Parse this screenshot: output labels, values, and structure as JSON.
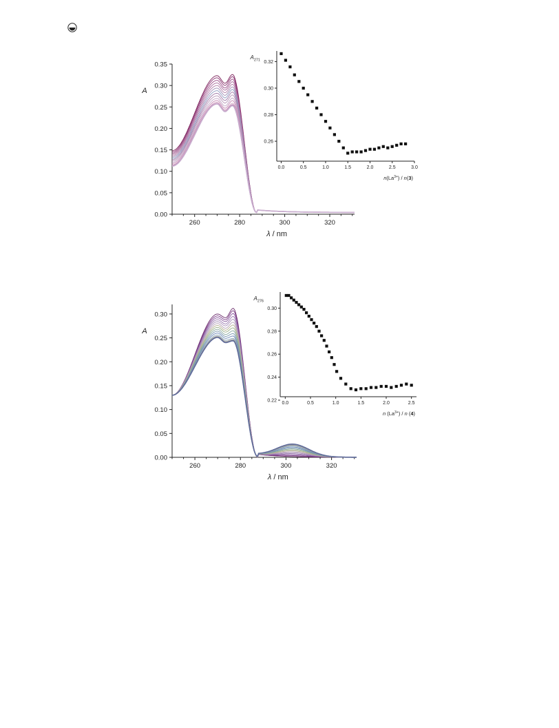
{
  "corner_icon": "circle-dot-icon",
  "chart_data": [
    {
      "type": "line",
      "xlabel_parts": [
        "λ",
        " / nm"
      ],
      "ylabel": "A",
      "xlim": [
        250,
        331
      ],
      "ylim": [
        0,
        0.35
      ],
      "xticks": [
        260,
        280,
        300,
        320
      ],
      "yticks": [
        0.0,
        0.05,
        0.1,
        0.15,
        0.2,
        0.25,
        0.3,
        0.35
      ],
      "ytick_labels": [
        "0.00",
        "0.05",
        "0.10",
        "0.15",
        "0.20",
        "0.25",
        "0.30",
        "0.35"
      ],
      "series_colors": [
        "#7a1f58",
        "#8a3070",
        "#9a4a86",
        "#a8689a",
        "#b27ea8",
        "#9f8cb4",
        "#8e9cc0",
        "#a07aa8",
        "#b696b8",
        "#c2a6c6",
        "#c68ab4",
        "#d0a0c0",
        "#bb7fb0",
        "#c9b0d0"
      ],
      "series": [
        {
          "base": 0.148,
          "peak1": 0.323,
          "dip": 0.305,
          "peak2": 0.326,
          "tail": 0.004
        },
        {
          "base": 0.145,
          "peak1": 0.318,
          "dip": 0.3,
          "peak2": 0.321,
          "tail": 0.004
        },
        {
          "base": 0.142,
          "peak1": 0.312,
          "dip": 0.294,
          "peak2": 0.315,
          "tail": 0.004
        },
        {
          "base": 0.139,
          "peak1": 0.306,
          "dip": 0.289,
          "peak2": 0.309,
          "tail": 0.004
        },
        {
          "base": 0.136,
          "peak1": 0.3,
          "dip": 0.283,
          "peak2": 0.303,
          "tail": 0.004
        },
        {
          "base": 0.133,
          "peak1": 0.294,
          "dip": 0.277,
          "peak2": 0.297,
          "tail": 0.004
        },
        {
          "base": 0.13,
          "peak1": 0.288,
          "dip": 0.271,
          "peak2": 0.291,
          "tail": 0.004
        },
        {
          "base": 0.127,
          "peak1": 0.282,
          "dip": 0.265,
          "peak2": 0.285,
          "tail": 0.004
        },
        {
          "base": 0.124,
          "peak1": 0.276,
          "dip": 0.259,
          "peak2": 0.278,
          "tail": 0.004
        },
        {
          "base": 0.121,
          "peak1": 0.27,
          "dip": 0.252,
          "peak2": 0.271,
          "tail": 0.004
        },
        {
          "base": 0.118,
          "peak1": 0.265,
          "dip": 0.247,
          "peak2": 0.265,
          "tail": 0.004
        },
        {
          "base": 0.115,
          "peak1": 0.261,
          "dip": 0.243,
          "peak2": 0.259,
          "tail": 0.004
        },
        {
          "base": 0.113,
          "peak1": 0.258,
          "dip": 0.24,
          "peak2": 0.255,
          "tail": 0.004
        },
        {
          "base": 0.112,
          "peak1": 0.257,
          "dip": 0.239,
          "peak2": 0.253,
          "tail": 0.004
        }
      ],
      "inset": {
        "type": "scatter",
        "ylabel_main": "A",
        "ylabel_sub": "271",
        "xlabel_parts": [
          "n",
          "(La",
          "3+",
          ") / ",
          "n",
          "(",
          "3",
          ")"
        ],
        "xlim": [
          -0.1,
          3.0
        ],
        "ylim": [
          0.245,
          0.328
        ],
        "xticks": [
          0.0,
          0.5,
          1.0,
          1.5,
          2.0,
          2.5,
          3.0
        ],
        "xtick_labels": [
          "0.0",
          "0.5",
          "1.0",
          "1.5",
          "2.0",
          "2.5",
          "3.0"
        ],
        "yticks": [
          0.26,
          0.28,
          0.3,
          0.32
        ],
        "ytick_labels": [
          "0.26",
          "0.28",
          "0.30",
          "0.32"
        ],
        "x": [
          0.0,
          0.1,
          0.2,
          0.3,
          0.4,
          0.5,
          0.6,
          0.7,
          0.8,
          0.9,
          1.0,
          1.1,
          1.2,
          1.3,
          1.4,
          1.5,
          1.6,
          1.7,
          1.8,
          1.9,
          2.0,
          2.1,
          2.2,
          2.3,
          2.4,
          2.5,
          2.6,
          2.7,
          2.8
        ],
        "y": [
          0.326,
          0.321,
          0.316,
          0.31,
          0.305,
          0.3,
          0.295,
          0.29,
          0.285,
          0.28,
          0.275,
          0.27,
          0.265,
          0.26,
          0.255,
          0.251,
          0.252,
          0.252,
          0.252,
          0.253,
          0.254,
          0.254,
          0.255,
          0.256,
          0.255,
          0.256,
          0.257,
          0.258,
          0.258
        ]
      }
    },
    {
      "type": "line",
      "xlabel_parts": [
        "λ",
        " / nm"
      ],
      "ylabel": "A",
      "xlim": [
        250,
        331
      ],
      "ylim": [
        0,
        0.32
      ],
      "xticks": [
        260,
        280,
        300,
        320
      ],
      "yticks": [
        0.0,
        0.05,
        0.1,
        0.15,
        0.2,
        0.25,
        0.3
      ],
      "ytick_labels": [
        "0.00",
        "0.05",
        "0.10",
        "0.15",
        "0.20",
        "0.25",
        "0.30"
      ],
      "series_colors": [
        "#6a2a6a",
        "#7a3a86",
        "#8a5aa0",
        "#9a78b0",
        "#a890b8",
        "#b6a0b8",
        "#b6b090",
        "#9ab08a",
        "#88a8a0",
        "#7a98b0",
        "#6a88b8",
        "#8aa6b6",
        "#a0a0a0",
        "#5e6a9a"
      ],
      "series": [
        {
          "base": 0.13,
          "peak1": 0.3,
          "dip": 0.292,
          "peak2": 0.312,
          "tail": 0.0,
          "shoulder": 0.0
        },
        {
          "base": 0.13,
          "peak1": 0.296,
          "dip": 0.288,
          "peak2": 0.307,
          "tail": 0.0,
          "shoulder": 0.002
        },
        {
          "base": 0.13,
          "peak1": 0.292,
          "dip": 0.284,
          "peak2": 0.301,
          "tail": 0.0,
          "shoulder": 0.004
        },
        {
          "base": 0.13,
          "peak1": 0.288,
          "dip": 0.279,
          "peak2": 0.295,
          "tail": 0.0,
          "shoulder": 0.006
        },
        {
          "base": 0.13,
          "peak1": 0.284,
          "dip": 0.275,
          "peak2": 0.289,
          "tail": 0.0,
          "shoulder": 0.008
        },
        {
          "base": 0.13,
          "peak1": 0.28,
          "dip": 0.27,
          "peak2": 0.283,
          "tail": 0.0,
          "shoulder": 0.01
        },
        {
          "base": 0.13,
          "peak1": 0.276,
          "dip": 0.266,
          "peak2": 0.277,
          "tail": 0.0,
          "shoulder": 0.012
        },
        {
          "base": 0.13,
          "peak1": 0.272,
          "dip": 0.262,
          "peak2": 0.271,
          "tail": 0.0,
          "shoulder": 0.014
        },
        {
          "base": 0.13,
          "peak1": 0.268,
          "dip": 0.257,
          "peak2": 0.265,
          "tail": 0.0,
          "shoulder": 0.016
        },
        {
          "base": 0.13,
          "peak1": 0.264,
          "dip": 0.253,
          "peak2": 0.259,
          "tail": 0.0,
          "shoulder": 0.018
        },
        {
          "base": 0.13,
          "peak1": 0.26,
          "dip": 0.249,
          "peak2": 0.254,
          "tail": 0.0,
          "shoulder": 0.02
        },
        {
          "base": 0.13,
          "peak1": 0.256,
          "dip": 0.245,
          "peak2": 0.249,
          "tail": 0.0,
          "shoulder": 0.022
        },
        {
          "base": 0.13,
          "peak1": 0.253,
          "dip": 0.242,
          "peak2": 0.246,
          "tail": 0.0,
          "shoulder": 0.024
        },
        {
          "base": 0.13,
          "peak1": 0.251,
          "dip": 0.24,
          "peak2": 0.244,
          "tail": 0.0,
          "shoulder": 0.026
        }
      ],
      "inset": {
        "type": "scatter",
        "ylabel_main": "A",
        "ylabel_sub": "276",
        "xlabel_parts": [
          "n",
          " (La",
          "3+",
          ") / ",
          "n",
          " (",
          "4",
          ")"
        ],
        "xlim": [
          -0.1,
          2.6
        ],
        "ylim": [
          0.223,
          0.314
        ],
        "xticks": [
          0.0,
          0.5,
          1.0,
          1.5,
          2.0,
          2.5
        ],
        "xtick_labels": [
          "0.0",
          "0.5",
          "1.0",
          "1.5",
          "2.0",
          "2.5"
        ],
        "yticks": [
          0.22,
          0.24,
          0.26,
          0.28,
          0.3
        ],
        "ytick_labels": [
          "0.22",
          "0.24",
          "0.26",
          "0.28",
          "0.30"
        ],
        "x": [
          0.02,
          0.07,
          0.12,
          0.17,
          0.22,
          0.27,
          0.32,
          0.37,
          0.42,
          0.47,
          0.52,
          0.57,
          0.62,
          0.67,
          0.72,
          0.77,
          0.82,
          0.87,
          0.92,
          0.97,
          1.02,
          1.1,
          1.2,
          1.3,
          1.4,
          1.5,
          1.6,
          1.7,
          1.8,
          1.9,
          2.0,
          2.1,
          2.2,
          2.3,
          2.4,
          2.5
        ],
        "y": [
          0.311,
          0.311,
          0.309,
          0.307,
          0.305,
          0.303,
          0.301,
          0.299,
          0.296,
          0.293,
          0.29,
          0.287,
          0.284,
          0.28,
          0.276,
          0.272,
          0.267,
          0.262,
          0.257,
          0.251,
          0.245,
          0.239,
          0.234,
          0.23,
          0.229,
          0.23,
          0.23,
          0.231,
          0.231,
          0.232,
          0.232,
          0.231,
          0.232,
          0.233,
          0.234,
          0.233
        ]
      }
    }
  ]
}
